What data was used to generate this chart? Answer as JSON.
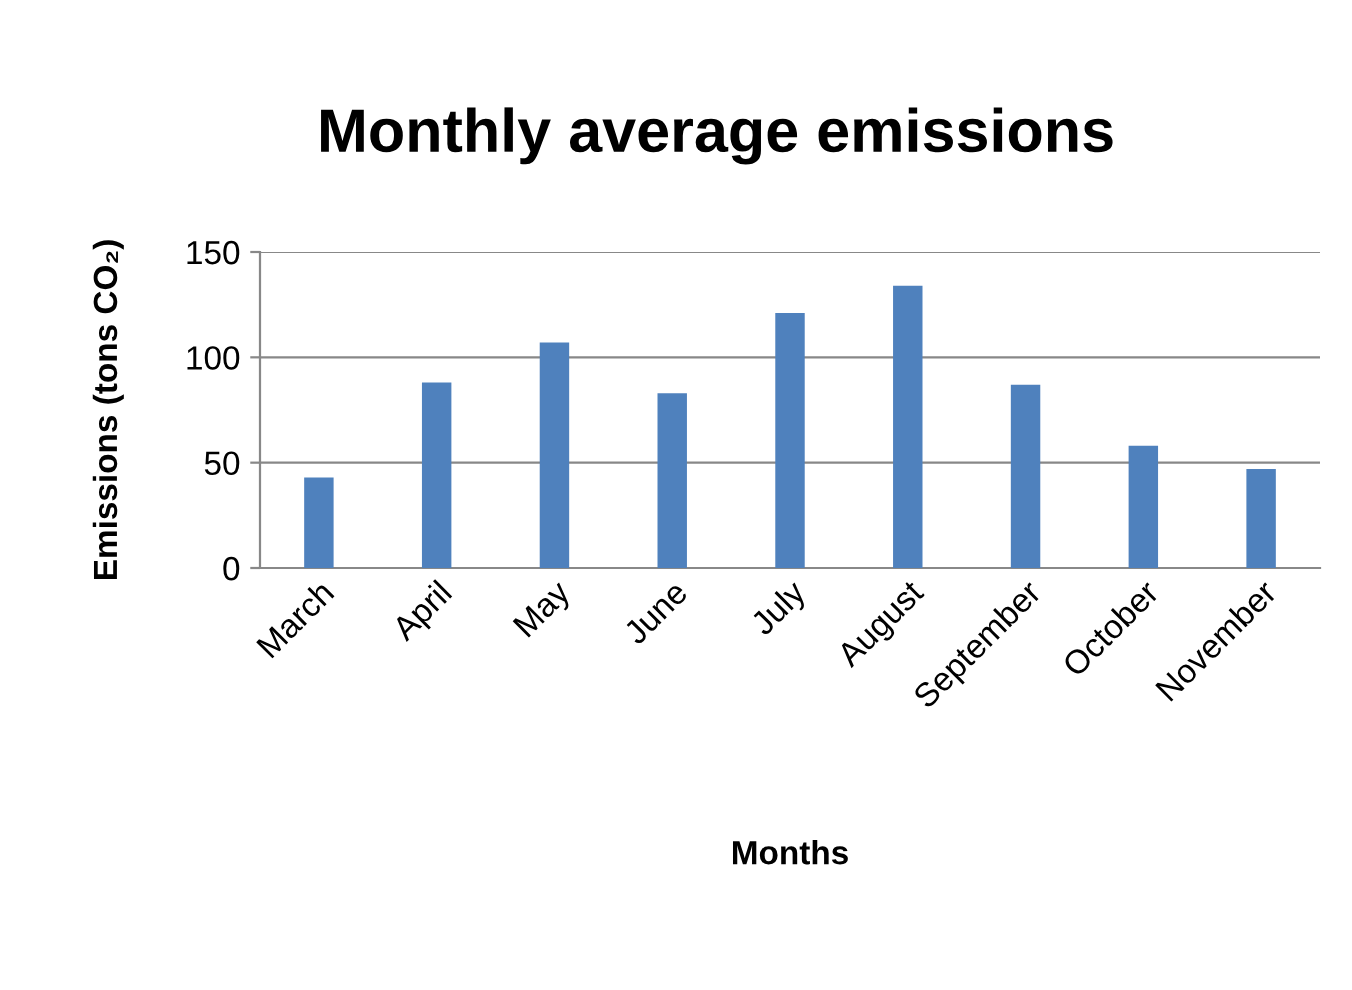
{
  "chart_data": {
    "type": "bar",
    "title": "Monthly average emissions",
    "xlabel": "Months",
    "ylabel": "Emissions (tons CO₂)",
    "categories": [
      "March",
      "April",
      "May",
      "June",
      "July",
      "August",
      "September",
      "October",
      "November"
    ],
    "values": [
      43,
      88,
      107,
      83,
      121,
      134,
      87,
      58,
      47
    ],
    "color": "#4f81bd",
    "ylim": [
      0,
      150
    ],
    "yticks": [
      0,
      50,
      100,
      150
    ],
    "grid": "y",
    "legend": false
  }
}
